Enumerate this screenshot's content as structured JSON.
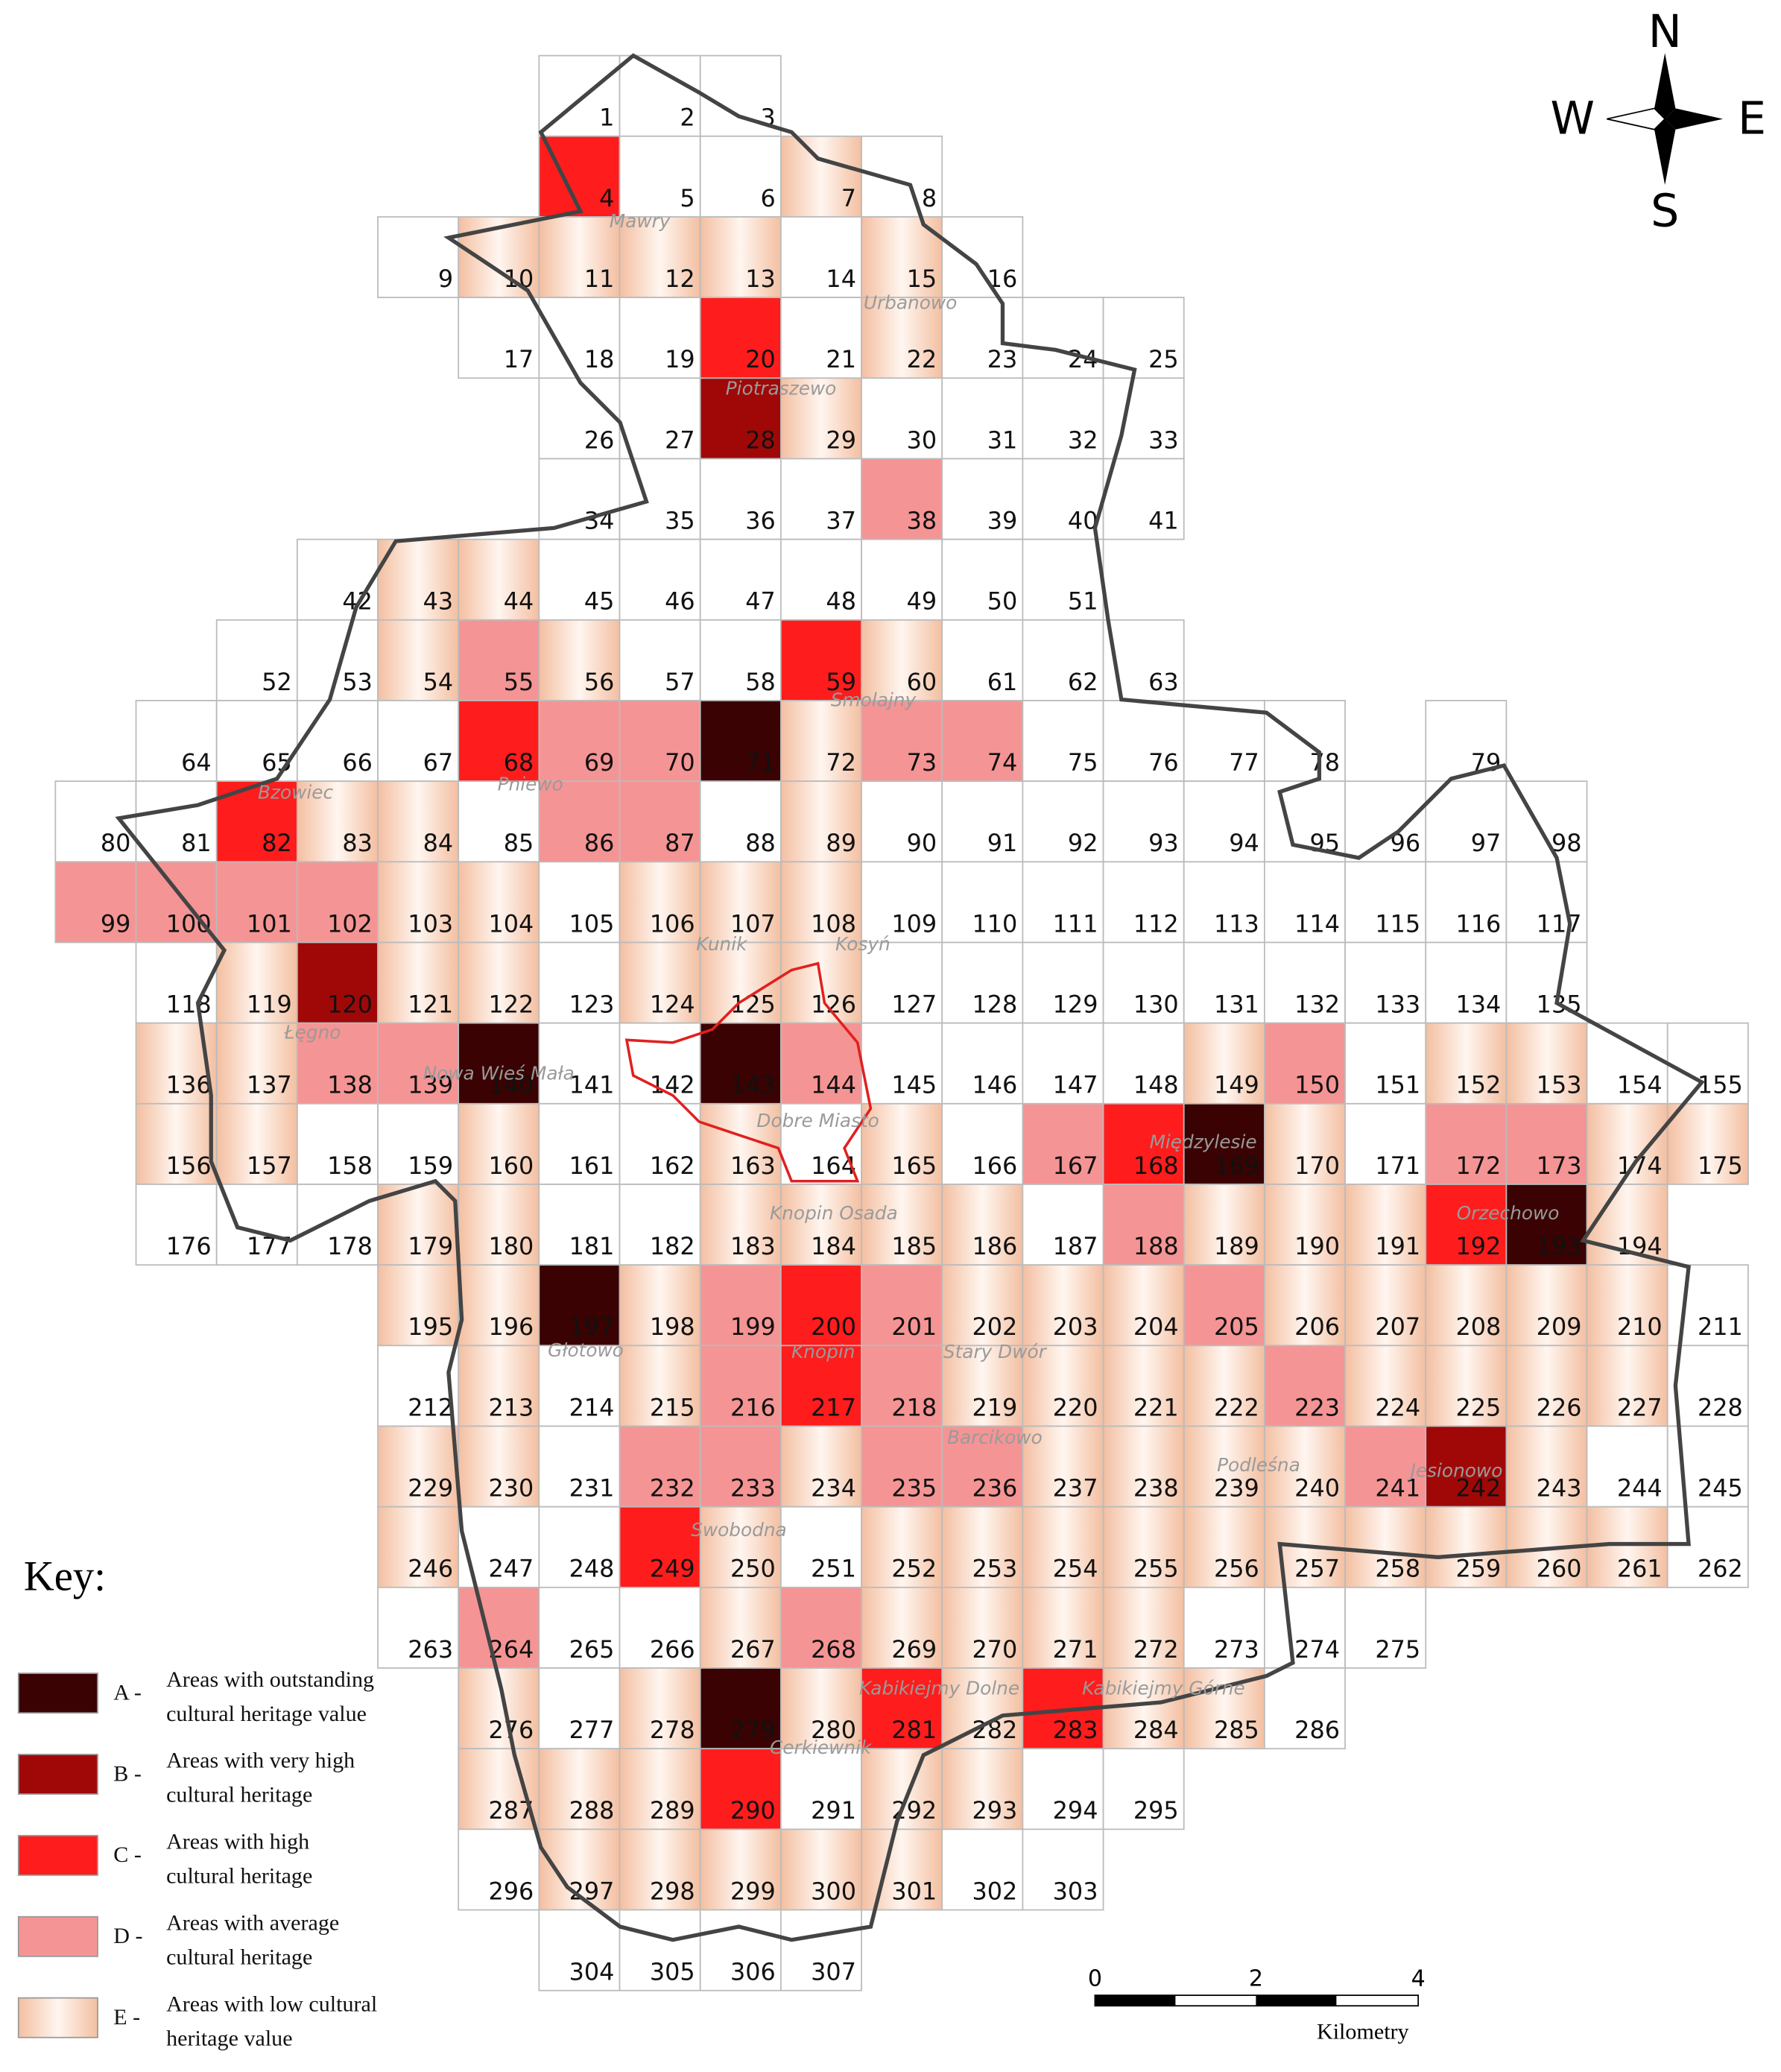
{
  "map": {
    "segments": [
      {
        "cells": [
          1,
          2,
          3
        ],
        "classes": "---"
      },
      {
        "cells": [
          4,
          5,
          6,
          7,
          8
        ],
        "classes": "C--E-"
      },
      {
        "cells": [
          9,
          10,
          11,
          12,
          13,
          14,
          15,
          16
        ],
        "classes": "-EEEE-E-"
      },
      {
        "cells": [
          17,
          18,
          19,
          20,
          21,
          22,
          23,
          24,
          25
        ],
        "classes": "---C-E---"
      },
      {
        "cells": [
          26,
          27,
          28,
          29,
          30,
          31,
          32,
          33
        ],
        "classes": "--BE----"
      },
      {
        "cells": [
          34,
          35,
          36,
          37,
          38,
          39,
          40,
          41
        ],
        "classes": "----D---"
      },
      {
        "cells": [
          42,
          43,
          44,
          45,
          46,
          47,
          48,
          49,
          50,
          51
        ],
        "classes": "-EE-------"
      },
      {
        "cells": [
          52,
          53,
          54,
          55,
          56,
          57,
          58,
          59,
          60,
          61,
          62,
          63
        ],
        "classes": "--EDE--CE---"
      },
      {
        "cells": [
          64,
          65,
          66,
          67,
          68,
          69,
          70,
          71,
          72,
          73,
          74,
          75,
          76,
          77,
          78
        ],
        "classes": "----CDDAEDD----"
      },
      {
        "cells": [
          79
        ],
        "classes": "-"
      },
      {
        "cells": [
          80,
          81,
          82,
          83,
          84,
          85,
          86,
          87,
          88,
          89,
          90,
          91,
          92,
          93,
          94,
          95,
          96,
          97,
          98
        ],
        "classes": "--CEE-DD-E---------"
      },
      {
        "cells": [
          99,
          100,
          101,
          102,
          103,
          104,
          105,
          106,
          107,
          108,
          109,
          110,
          111,
          112,
          113,
          114,
          115,
          116,
          117
        ],
        "classes": "DDDDEE-EEE---------"
      },
      {
        "cells": [
          118,
          119,
          120,
          121,
          122,
          123,
          124,
          125,
          126,
          127,
          128,
          129,
          130,
          131,
          132,
          133,
          134,
          135
        ],
        "classes": "-EBEE-EEE---------"
      },
      {
        "cells": [
          136,
          137,
          138,
          139,
          140,
          141,
          142,
          143,
          144,
          145,
          146,
          147,
          148,
          149,
          150,
          151,
          152,
          153,
          154,
          155
        ],
        "classes": "EEDDA--AD----ED-EE--"
      },
      {
        "cells": [
          156,
          157,
          158,
          159,
          160,
          161,
          162,
          163,
          164,
          165,
          166,
          167,
          168,
          169,
          170,
          171,
          172,
          173,
          174,
          175
        ],
        "classes": "EE--E--E-E-DCAE-DDEE"
      },
      {
        "cells": [
          176,
          177,
          178,
          179,
          180,
          181,
          182,
          183,
          184,
          185,
          186,
          187,
          188,
          189,
          190,
          191,
          192,
          193,
          194
        ],
        "classes": "---EE--EEEE-DEEECAE"
      },
      {
        "cells": [
          195,
          196,
          197,
          198,
          199,
          200,
          201,
          202,
          203,
          204,
          205,
          206,
          207,
          208,
          209,
          210,
          211
        ],
        "classes": "EEAEDCDEEEDEEEEE-"
      },
      {
        "cells": [
          212,
          213,
          214,
          215,
          216,
          217,
          218,
          219,
          220,
          221,
          222,
          223,
          224,
          225,
          226,
          227,
          228
        ],
        "classes": "-E-EDCDEEEEDEEEE-"
      },
      {
        "cells": [
          229,
          230,
          231,
          232,
          233,
          234,
          235,
          236,
          237,
          238,
          239,
          240,
          241,
          242,
          243,
          244,
          245
        ],
        "classes": "EE-DDEDDEEEEDBE--"
      },
      {
        "cells": [
          246,
          247,
          248,
          249,
          250,
          251,
          252,
          253,
          254,
          255,
          256,
          257,
          258,
          259,
          260,
          261,
          262
        ],
        "classes": "E--CE-EEEEEEEEEE-"
      },
      {
        "cells": [
          263,
          264,
          265,
          266,
          267,
          268,
          269,
          270,
          271,
          272,
          273,
          274,
          275
        ],
        "classes": "-D--EDEEEE---"
      },
      {
        "cells": [
          276,
          277,
          278,
          279,
          280,
          281,
          282,
          283,
          284,
          285,
          286
        ],
        "classes": "E-EAECECEE-"
      },
      {
        "cells": [
          287,
          288,
          289,
          290,
          291,
          292,
          293,
          294,
          295
        ],
        "classes": "EEEC-EE--"
      },
      {
        "cells": [
          296,
          297,
          298,
          299,
          300,
          301,
          302,
          303
        ],
        "classes": "-EEEEE--"
      },
      {
        "cells": [
          304,
          305,
          306,
          307
        ],
        "classes": "----"
      }
    ],
    "places": [
      "Mawry",
      "Urbanowo",
      "Piotraszewo",
      "Smolajny",
      "Pniewo",
      "Bzowiec",
      "Kunik",
      "Kosyń",
      "Łęgno",
      "Nowa Wieś Mała",
      "Dobre Miasto",
      "Knopin Osada",
      "Międzylesie",
      "Orzechowo",
      "Głotowo",
      "Knopin",
      "Stary Dwór",
      "Barcikowo",
      "Podleśna",
      "Jesionowo",
      "Swobodna",
      "Kabikiejmy Dolne",
      "Kabikiejmy Górne",
      "Cerkiewnik"
    ]
  },
  "compass": {
    "n": "N",
    "e": "E",
    "s": "S",
    "w": "W"
  },
  "key": {
    "title": "Key:",
    "items": [
      {
        "class": "A",
        "label": "A -",
        "lines": [
          "Areas with outstanding",
          "cultural heritage value"
        ],
        "color": "#3a0202"
      },
      {
        "class": "B",
        "label": "B -",
        "lines": [
          "Areas with very high",
          "cultural heritage"
        ],
        "color": "#a00808"
      },
      {
        "class": "C",
        "label": "C -",
        "lines": [
          "Areas with high",
          "cultural heritage"
        ],
        "color": "#ff1c1c"
      },
      {
        "class": "D",
        "label": "D -",
        "lines": [
          "Areas with average",
          "cultural heritage"
        ],
        "color": "#f59494"
      },
      {
        "class": "E",
        "label": "E -",
        "lines": [
          "Areas with low cultural",
          "heritage value"
        ],
        "color": "#f3c2a6"
      }
    ]
  },
  "scale": {
    "ticks": [
      "0",
      "2",
      "4"
    ],
    "unit": "Kilometry"
  }
}
